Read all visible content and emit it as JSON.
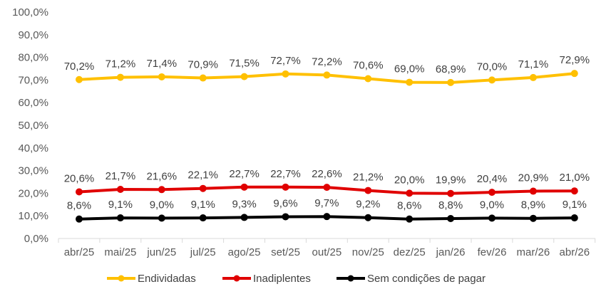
{
  "chart_data": {
    "type": "line",
    "categories": [
      "abr/25",
      "mai/25",
      "jun/25",
      "jul/25",
      "ago/25",
      "set/25",
      "out/25",
      "nov/25",
      "dez/25",
      "jan/26",
      "fev/26",
      "mar/26",
      "abr/26"
    ],
    "ylim": [
      0,
      100
    ],
    "yticks": [
      0,
      10,
      20,
      30,
      40,
      50,
      60,
      70,
      80,
      90,
      100
    ],
    "ytick_labels": [
      "0,0%",
      "10,0%",
      "20,0%",
      "30,0%",
      "40,0%",
      "50,0%",
      "60,0%",
      "70,0%",
      "80,0%",
      "90,0%",
      "100,0%"
    ],
    "grid": false,
    "legend_position": "bottom",
    "series": [
      {
        "name": "Endividadas",
        "color": "#FFC000",
        "values": [
          70.2,
          71.2,
          71.4,
          70.9,
          71.5,
          72.7,
          72.2,
          70.6,
          69.0,
          68.9,
          70.0,
          71.1,
          72.9
        ],
        "labels": [
          "70,2%",
          "71,2%",
          "71,4%",
          "70,9%",
          "71,5%",
          "72,7%",
          "72,2%",
          "70,6%",
          "69,0%",
          "68,9%",
          "70,0%",
          "71,1%",
          "72,9%"
        ]
      },
      {
        "name": "Inadiplentes",
        "color": "#E00000",
        "values": [
          20.6,
          21.7,
          21.6,
          22.1,
          22.7,
          22.7,
          22.6,
          21.2,
          20.0,
          19.9,
          20.4,
          20.9,
          21.0
        ],
        "labels": [
          "20,6%",
          "21,7%",
          "21,6%",
          "22,1%",
          "22,7%",
          "22,7%",
          "22,6%",
          "21,2%",
          "20,0%",
          "19,9%",
          "20,4%",
          "20,9%",
          "21,0%"
        ]
      },
      {
        "name": "Sem condições de pagar",
        "color": "#000000",
        "values": [
          8.6,
          9.1,
          9.0,
          9.1,
          9.3,
          9.6,
          9.7,
          9.2,
          8.6,
          8.8,
          9.0,
          8.9,
          9.1
        ],
        "labels": [
          "8,6%",
          "9,1%",
          "9,0%",
          "9,1%",
          "9,3%",
          "9,6%",
          "9,7%",
          "9,2%",
          "8,6%",
          "8,8%",
          "9,0%",
          "8,9%",
          "9,1%"
        ]
      }
    ]
  }
}
